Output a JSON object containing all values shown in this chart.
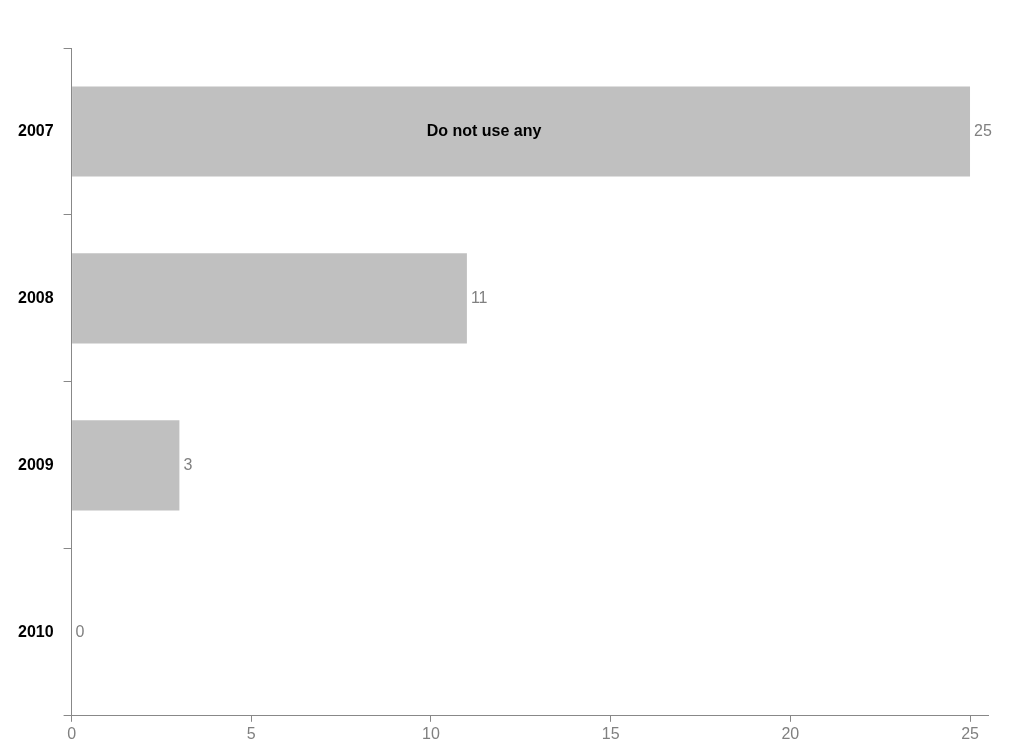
{
  "chart_data": {
    "type": "bar",
    "orientation": "horizontal",
    "categories": [
      "2007",
      "2008",
      "2009",
      "2010"
    ],
    "values": [
      25,
      11,
      3,
      0
    ],
    "color": "#c0c0c0",
    "xlim": [
      0,
      25.5
    ],
    "xticks": [
      0,
      5,
      10,
      15,
      20,
      25
    ],
    "grid": false,
    "legend": false,
    "data_labels": true,
    "annotations": [
      "Do not use any"
    ]
  }
}
